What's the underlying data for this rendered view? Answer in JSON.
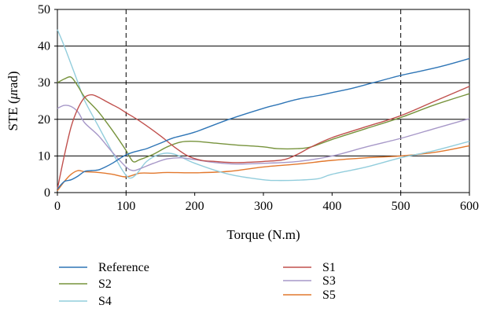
{
  "chart_data": {
    "type": "line",
    "title": "",
    "xlabel": "Torque (N.m)",
    "ylabel_prefix": "STE (",
    "ylabel_unit_mu": "μ",
    "ylabel_suffix": "rad)",
    "xlim": [
      0,
      600
    ],
    "ylim": [
      0,
      50
    ],
    "xticks": [
      0,
      100,
      200,
      300,
      400,
      500,
      600
    ],
    "yticks": [
      0,
      10,
      20,
      30,
      40,
      50
    ],
    "gridlines_y": [
      10,
      20,
      30,
      40,
      50
    ],
    "vlines_dashed": [
      100,
      500
    ],
    "legend_position": "bottom",
    "series": [
      {
        "name": "Reference",
        "color": "#2e75b6",
        "x": [
          0,
          10,
          20,
          30,
          40,
          50,
          60,
          70,
          80,
          90,
          100,
          110,
          120,
          130,
          150,
          170,
          200,
          250,
          300,
          320,
          350,
          380,
          400,
          430,
          460,
          480,
          500,
          530,
          560,
          600
        ],
        "y": [
          1.0,
          3.0,
          3.5,
          4.5,
          5.8,
          6.0,
          6.2,
          7.0,
          8.0,
          9.2,
          10.3,
          11.0,
          11.5,
          12.0,
          13.5,
          15.0,
          16.5,
          20.0,
          23.0,
          24.0,
          25.5,
          26.5,
          27.3,
          28.5,
          30.0,
          31.0,
          32.0,
          33.2,
          34.5,
          36.6
        ]
      },
      {
        "name": "S1",
        "color": "#c0504d",
        "x": [
          0,
          10,
          20,
          30,
          40,
          50,
          60,
          70,
          80,
          90,
          100,
          120,
          150,
          170,
          190,
          210,
          230,
          260,
          300,
          330,
          350,
          370,
          400,
          450,
          500,
          550,
          600
        ],
        "y": [
          1.0,
          10.0,
          18.0,
          23.0,
          26.0,
          26.7,
          26.0,
          25.0,
          24.0,
          23.0,
          21.8,
          19.5,
          15.5,
          12.5,
          10.0,
          8.8,
          8.5,
          8.2,
          8.5,
          9.0,
          10.5,
          12.5,
          15.0,
          18.0,
          21.0,
          25.0,
          29.0
        ]
      },
      {
        "name": "S2",
        "color": "#77933c",
        "x": [
          0,
          10,
          20,
          30,
          40,
          60,
          80,
          100,
          110,
          120,
          140,
          160,
          180,
          200,
          230,
          260,
          300,
          320,
          350,
          370,
          400,
          450,
          500,
          550,
          600
        ],
        "y": [
          30.0,
          31.0,
          31.5,
          29.0,
          26.0,
          22.0,
          17.0,
          11.5,
          8.5,
          9.0,
          10.5,
          12.5,
          13.8,
          14.0,
          13.5,
          13.0,
          12.5,
          12.0,
          12.0,
          12.5,
          14.5,
          17.5,
          20.5,
          24.0,
          27.0
        ]
      },
      {
        "name": "S3",
        "color": "#a798c8",
        "x": [
          0,
          10,
          20,
          30,
          40,
          60,
          80,
          100,
          110,
          120,
          140,
          160,
          180,
          200,
          230,
          260,
          300,
          350,
          400,
          450,
          500,
          550,
          600
        ],
        "y": [
          23.0,
          23.8,
          23.5,
          22.0,
          19.0,
          15.5,
          11.0,
          7.0,
          6.0,
          6.5,
          8.0,
          9.2,
          9.5,
          9.0,
          8.2,
          7.8,
          8.0,
          8.5,
          10.0,
          12.5,
          14.8,
          17.5,
          20.2
        ]
      },
      {
        "name": "S4",
        "color": "#92cddc",
        "x": [
          0,
          10,
          20,
          30,
          40,
          60,
          80,
          95,
          105,
          115,
          130,
          150,
          170,
          200,
          250,
          300,
          320,
          350,
          380,
          400,
          450,
          500,
          550,
          600
        ],
        "y": [
          44.5,
          40.0,
          35.0,
          30.0,
          25.0,
          18.0,
          11.0,
          6.0,
          4.0,
          5.0,
          8.5,
          10.5,
          10.5,
          8.0,
          5.0,
          3.5,
          3.3,
          3.4,
          3.8,
          5.0,
          7.0,
          9.5,
          11.5,
          14.0
        ]
      },
      {
        "name": "S5",
        "color": "#e2782d",
        "x": [
          0,
          10,
          20,
          30,
          40,
          60,
          80,
          100,
          120,
          140,
          160,
          200,
          250,
          300,
          350,
          400,
          450,
          500,
          550,
          600
        ],
        "y": [
          0.5,
          3.0,
          5.0,
          6.0,
          5.7,
          5.5,
          5.0,
          4.3,
          5.3,
          5.3,
          5.5,
          5.4,
          5.8,
          7.0,
          7.8,
          8.8,
          9.5,
          10.0,
          11.0,
          12.8
        ]
      }
    ]
  }
}
